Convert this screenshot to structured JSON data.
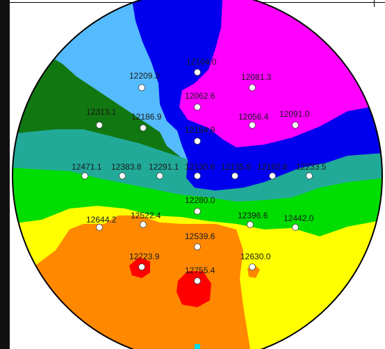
{
  "chart_data": {
    "type": "heatmap",
    "title": "",
    "xlabel": "",
    "ylabel": "",
    "points": [
      {
        "label": "12104.0",
        "value": 12104.0
      },
      {
        "label": "12209.3",
        "value": 12209.3
      },
      {
        "label": "12081.3",
        "value": 12081.3
      },
      {
        "label": "12062.6",
        "value": 12062.6
      },
      {
        "label": "12313.1",
        "value": 12313.1
      },
      {
        "label": "12186.9",
        "value": 12186.9
      },
      {
        "label": "12056.4",
        "value": 12056.4
      },
      {
        "label": "12091.0",
        "value": 12091.0
      },
      {
        "label": "12154.9",
        "value": 12154.9
      },
      {
        "label": "12471.1",
        "value": 12471.1
      },
      {
        "label": "12383.8",
        "value": 12383.8
      },
      {
        "label": "12291.1",
        "value": 12291.1
      },
      {
        "label": "12130.6",
        "value": 12130.6
      },
      {
        "label": "12135.8",
        "value": 12135.8
      },
      {
        "label": "12192.8",
        "value": 12192.8
      },
      {
        "label": "12233.5",
        "value": 12233.5
      },
      {
        "label": "12280.0",
        "value": 12280.0
      },
      {
        "label": "12644.2",
        "value": 12644.2
      },
      {
        "label": "12522.4",
        "value": 12522.4
      },
      {
        "label": "12396.6",
        "value": 12396.6
      },
      {
        "label": "12442.0",
        "value": 12442.0
      },
      {
        "label": "12539.6",
        "value": 12539.6
      },
      {
        "label": "12723.9",
        "value": 12723.9
      },
      {
        "label": "12630.0",
        "value": 12630.0
      },
      {
        "label": "12755.4",
        "value": 12755.4
      }
    ],
    "color_scale": [
      "#ff00ff",
      "#0000ee",
      "#55bbff",
      "#117711",
      "#22aa99",
      "#00dd00",
      "#ffff00",
      "#ff8800",
      "#ff0000"
    ]
  }
}
